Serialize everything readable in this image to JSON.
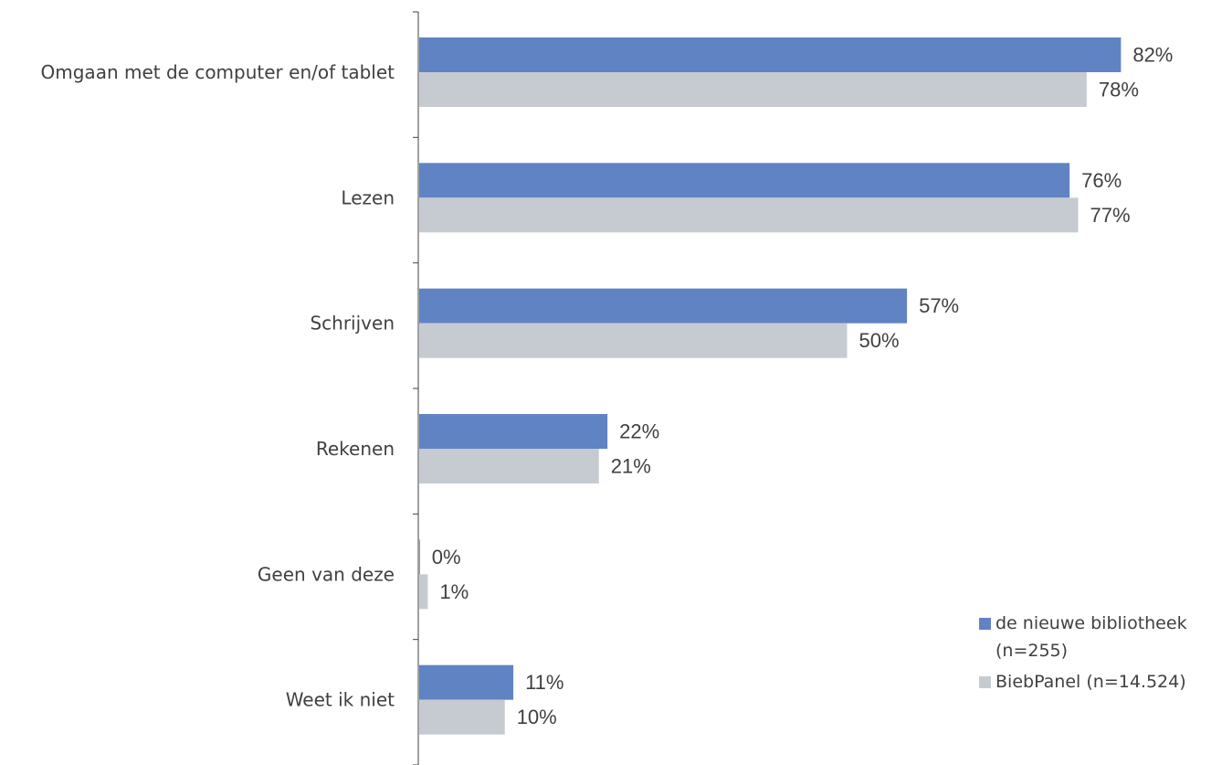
{
  "chart_data": {
    "type": "bar",
    "orientation": "horizontal",
    "categories": [
      "Omgaan met de computer en/of tablet",
      "Lezen",
      "Schrijven",
      "Rekenen",
      "Geen van deze",
      "Weet ik niet"
    ],
    "series": [
      {
        "name": "de nieuwe bibliotheek (n=255)",
        "legend_lines": [
          "de nieuwe bibliotheek",
          "(n=255)"
        ],
        "color": "#6083c3",
        "values": [
          82,
          76,
          57,
          22,
          0,
          11
        ],
        "labels": [
          "82%",
          "76%",
          "57%",
          "22%",
          "0%",
          "11%"
        ]
      },
      {
        "name": "BiebPanel (n=14.524)",
        "legend_lines": [
          "BiebPanel (n=14.524)"
        ],
        "color": "#c5cbd1",
        "values": [
          78,
          77,
          50,
          21,
          1,
          10
        ],
        "labels": [
          "78%",
          "77%",
          "50%",
          "21%",
          "1%",
          "10%"
        ]
      }
    ],
    "xlim": [
      0,
      100
    ],
    "grid": false,
    "legend_position": "bottom-right",
    "title": "",
    "xlabel": "",
    "ylabel": ""
  }
}
